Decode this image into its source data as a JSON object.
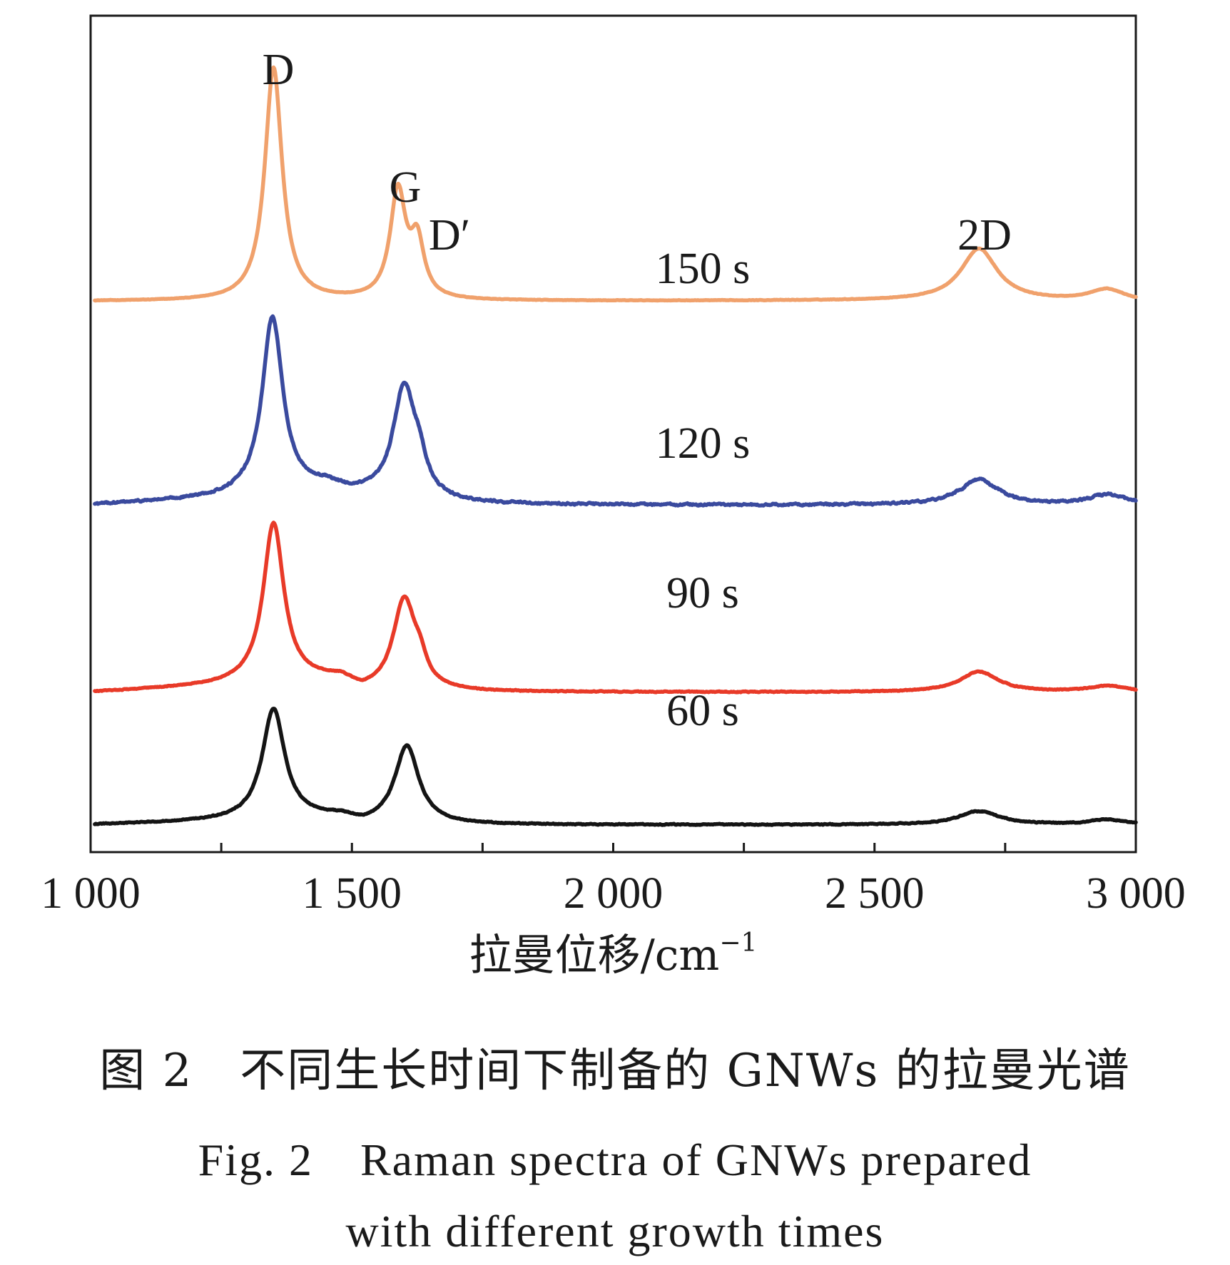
{
  "caption": {
    "cn": "图 2　不同生长时间下制备的 GNWs 的拉曼光谱",
    "en_line1": "Fig. 2　Raman spectra of GNWs prepared",
    "en_line2": "with different growth times"
  },
  "chart_data": {
    "type": "line",
    "title": "",
    "xlabel": "拉曼位移/cm",
    "xlabel_superscript": "−1",
    "ylabel": "",
    "xlim": [
      1000,
      3000
    ],
    "x_ticks": [
      1000,
      1250,
      1500,
      1750,
      2000,
      2250,
      2500,
      2750,
      3000
    ],
    "x_tick_labels": [
      "1 000",
      "1 500",
      "2 000",
      "2 500",
      "3 000"
    ],
    "x_tick_label_values": [
      1000,
      1500,
      2000,
      2500,
      3000
    ],
    "y_ticks": "none",
    "grid": false,
    "legend": "none",
    "peak_annotations": [
      {
        "label": "D",
        "x": 1350
      },
      {
        "label": "G",
        "x": 1590
      },
      {
        "label": "D′",
        "x": 1625
      },
      {
        "label": "2D",
        "x": 2700
      }
    ],
    "series": [
      {
        "name": "150 s",
        "color": "#F0A16C",
        "offset": 9.0,
        "noise": 0.012,
        "baseline": [
          [
            1000,
            0.0
          ],
          [
            1500,
            0.0
          ],
          [
            2700,
            0.02
          ],
          [
            3000,
            -0.03
          ]
        ],
        "peaks": [
          {
            "center": 1350,
            "height": 6.85,
            "width": 20
          },
          {
            "center": 1588,
            "height": 3.15,
            "width": 18
          },
          {
            "center": 1625,
            "height": 1.6,
            "width": 16
          },
          {
            "center": 2700,
            "height": 1.52,
            "width": 42
          },
          {
            "center": 2945,
            "height": 0.35,
            "width": 42
          }
        ]
      },
      {
        "name": "120 s",
        "color": "#3A4A9E",
        "offset": 3.0,
        "noise": 0.05,
        "baseline": [
          [
            1000,
            0.0
          ],
          [
            1450,
            0.3
          ],
          [
            1500,
            0.0
          ],
          [
            3000,
            0.0
          ]
        ],
        "peaks": [
          {
            "center": 1348,
            "height": 5.2,
            "width": 24
          },
          {
            "center": 1500,
            "height": 0.28,
            "width": 90
          },
          {
            "center": 1600,
            "height": 3.3,
            "width": 26
          },
          {
            "center": 1630,
            "height": 0.7,
            "width": 16
          },
          {
            "center": 2700,
            "height": 0.75,
            "width": 45
          },
          {
            "center": 2945,
            "height": 0.3,
            "width": 42
          }
        ]
      },
      {
        "name": "90 s",
        "color": "#E83A28",
        "offset": -2.5,
        "noise": 0.022,
        "baseline": [
          [
            1000,
            0.0
          ],
          [
            1480,
            0.35
          ],
          [
            1520,
            0.0
          ],
          [
            3000,
            0.0
          ]
        ],
        "peaks": [
          {
            "center": 1350,
            "height": 4.7,
            "width": 24
          },
          {
            "center": 1600,
            "height": 2.65,
            "width": 26
          },
          {
            "center": 1630,
            "height": 0.55,
            "width": 16
          },
          {
            "center": 2700,
            "height": 0.6,
            "width": 45
          },
          {
            "center": 2945,
            "height": 0.18,
            "width": 42
          }
        ]
      },
      {
        "name": "60 s",
        "color": "#141414",
        "offset": -6.4,
        "noise": 0.025,
        "baseline": [
          [
            1000,
            0.0
          ],
          [
            1480,
            0.2
          ],
          [
            1520,
            0.0
          ],
          [
            3000,
            0.0
          ]
        ],
        "peaks": [
          {
            "center": 1350,
            "height": 3.25,
            "width": 26
          },
          {
            "center": 1605,
            "height": 2.3,
            "width": 28
          },
          {
            "center": 2700,
            "height": 0.4,
            "width": 48
          },
          {
            "center": 2945,
            "height": 0.15,
            "width": 42
          }
        ]
      }
    ],
    "ylim": [
      -7.2,
      17.4
    ]
  }
}
